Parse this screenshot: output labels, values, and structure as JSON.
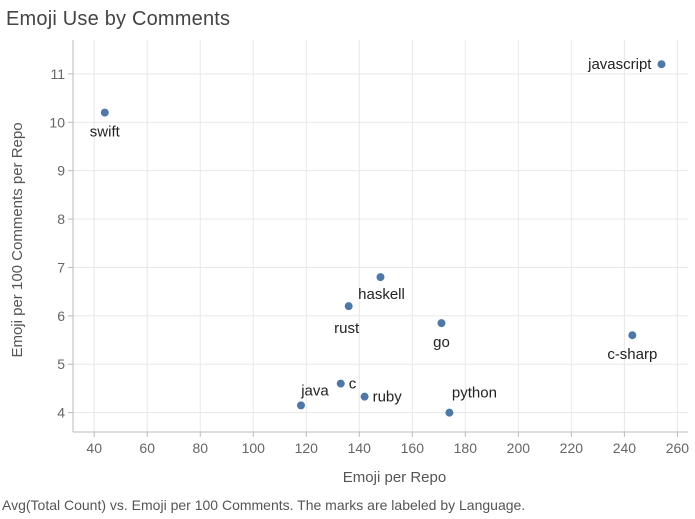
{
  "caption": "Avg(Total Count) vs. Emoji per 100 Comments.  The marks are labeled by Language.",
  "colors": {
    "point": "#4e79a7",
    "grid": "#e8e8e8",
    "axis": "#bbbbbb"
  },
  "chart_data": {
    "type": "scatter",
    "title": "Emoji Use by Comments",
    "xlabel": "Emoji per Repo",
    "ylabel": "Emoji per 100 Comments per Repo",
    "xlim": [
      32,
      264
    ],
    "ylim": [
      3.6,
      11.7
    ],
    "xticks": [
      40,
      60,
      80,
      100,
      120,
      140,
      160,
      180,
      200,
      220,
      240,
      260
    ],
    "yticks": [
      4,
      5,
      6,
      7,
      8,
      9,
      10,
      11
    ],
    "grid": true,
    "points": [
      {
        "label": "javascript",
        "x": 254,
        "y": 11.2,
        "label_pos": "left"
      },
      {
        "label": "swift",
        "x": 44,
        "y": 10.2,
        "label_pos": "below"
      },
      {
        "label": "haskell",
        "x": 148,
        "y": 6.8,
        "label_pos": "below-right"
      },
      {
        "label": "rust",
        "x": 136,
        "y": 6.2,
        "label_pos": "below-left"
      },
      {
        "label": "go",
        "x": 171,
        "y": 5.85,
        "label_pos": "below"
      },
      {
        "label": "c-sharp",
        "x": 243,
        "y": 5.6,
        "label_pos": "below"
      },
      {
        "label": "java",
        "x": 118,
        "y": 4.15,
        "label_pos": "above-right"
      },
      {
        "label": "c",
        "x": 133,
        "y": 4.6,
        "label_pos": "right"
      },
      {
        "label": "ruby",
        "x": 142,
        "y": 4.33,
        "label_pos": "right"
      },
      {
        "label": "python",
        "x": 174,
        "y": 4.0,
        "label_pos": "above-right"
      }
    ]
  }
}
